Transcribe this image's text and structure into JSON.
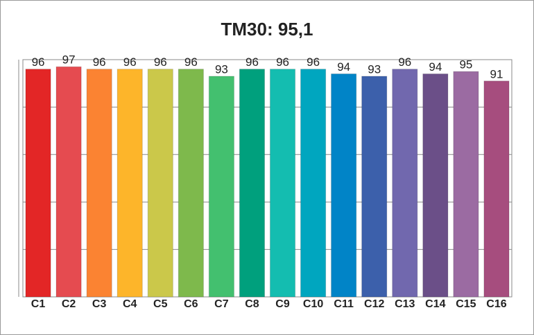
{
  "chart_data": {
    "type": "bar",
    "title": "TM30: 95,1",
    "categories": [
      "C1",
      "C2",
      "C3",
      "C4",
      "C5",
      "C6",
      "C7",
      "C8",
      "C9",
      "C10",
      "C11",
      "C12",
      "C13",
      "C14",
      "C15",
      "C16"
    ],
    "values": [
      96,
      97,
      96,
      96,
      96,
      96,
      93,
      96,
      96,
      96,
      94,
      93,
      96,
      94,
      95,
      91
    ],
    "colors": [
      "#e32626",
      "#e54b50",
      "#fb8332",
      "#fdb52a",
      "#cbc84a",
      "#7eb94c",
      "#43c06f",
      "#00a07d",
      "#14bdb0",
      "#00a6bf",
      "#0184c7",
      "#3c60ab",
      "#7168ae",
      "#6b4f88",
      "#9b6ba2",
      "#a64d7e"
    ],
    "ylim": [
      0,
      100
    ],
    "yticks": [
      0,
      20,
      40,
      60,
      80,
      100
    ],
    "grid": true
  }
}
